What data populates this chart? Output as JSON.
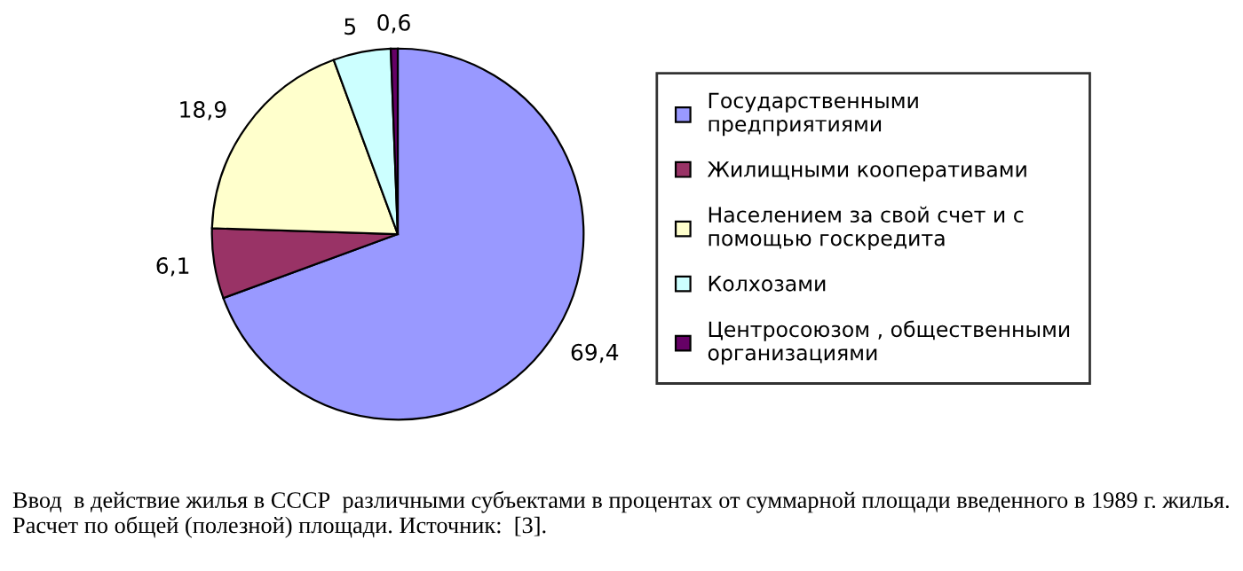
{
  "chart_data": {
    "type": "pie",
    "categories": [
      "Государственными\nпредприятиями",
      "Жилищными кооперативами",
      "Населением за свой счет и с\nпомощью госкредита",
      "Колхозами",
      "Центросоюзом , общественными\nорганизациями"
    ],
    "values": [
      69.4,
      6.1,
      18.9,
      5,
      0.6
    ],
    "value_labels": [
      "69,4",
      "6,1",
      "18,9",
      "5",
      "0,6"
    ],
    "colors": [
      "#9999ff",
      "#993366",
      "#ffffcc",
      "#ccffff",
      "#660066"
    ],
    "legend": "right",
    "annotations": [
      "Ввод  в действие жилья в СССР  различными субъектами в процентах от суммарной площади введенного в 1989 г. жилья. Расчет по общей (полезной) площади. Источник:  [3]."
    ]
  }
}
